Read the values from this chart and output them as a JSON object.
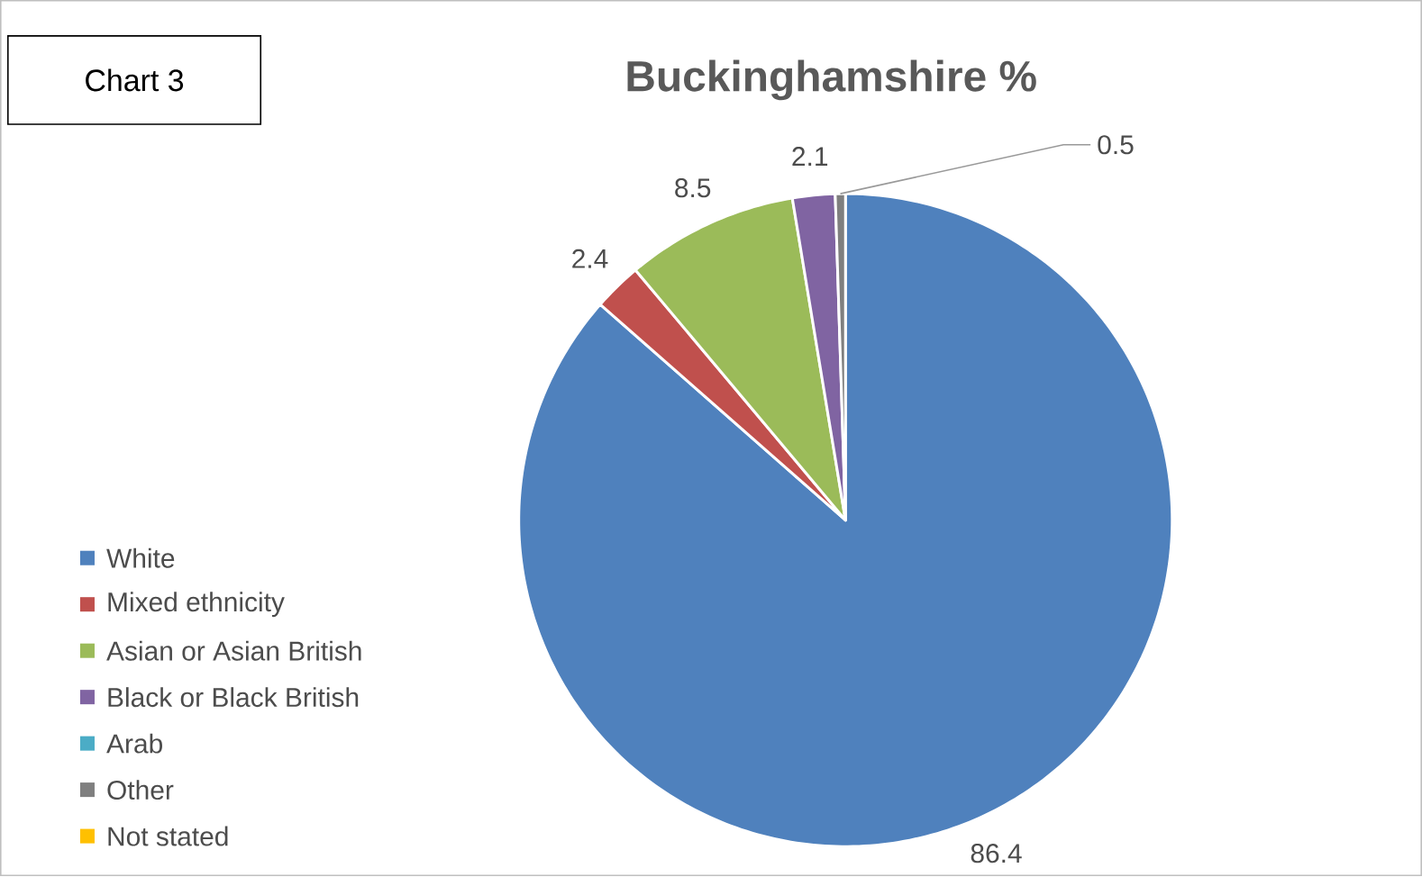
{
  "chart_data": {
    "type": "pie",
    "title": "Buckinghamshire %",
    "annotations": [
      "Chart 3"
    ],
    "categories": [
      "White",
      "Mixed ethnicity",
      "Asian or Asian British",
      "Black or Black British",
      "Arab",
      "Other",
      "Not stated"
    ],
    "values": [
      86.4,
      2.4,
      8.5,
      2.1,
      null,
      0.5,
      null
    ],
    "colors": [
      "#4f81bd",
      "#c0504d",
      "#9bbb59",
      "#8064a2",
      "#4bacc6",
      "#7f7f7f",
      "#ffc000"
    ],
    "data_labels": true,
    "legend": "left"
  }
}
